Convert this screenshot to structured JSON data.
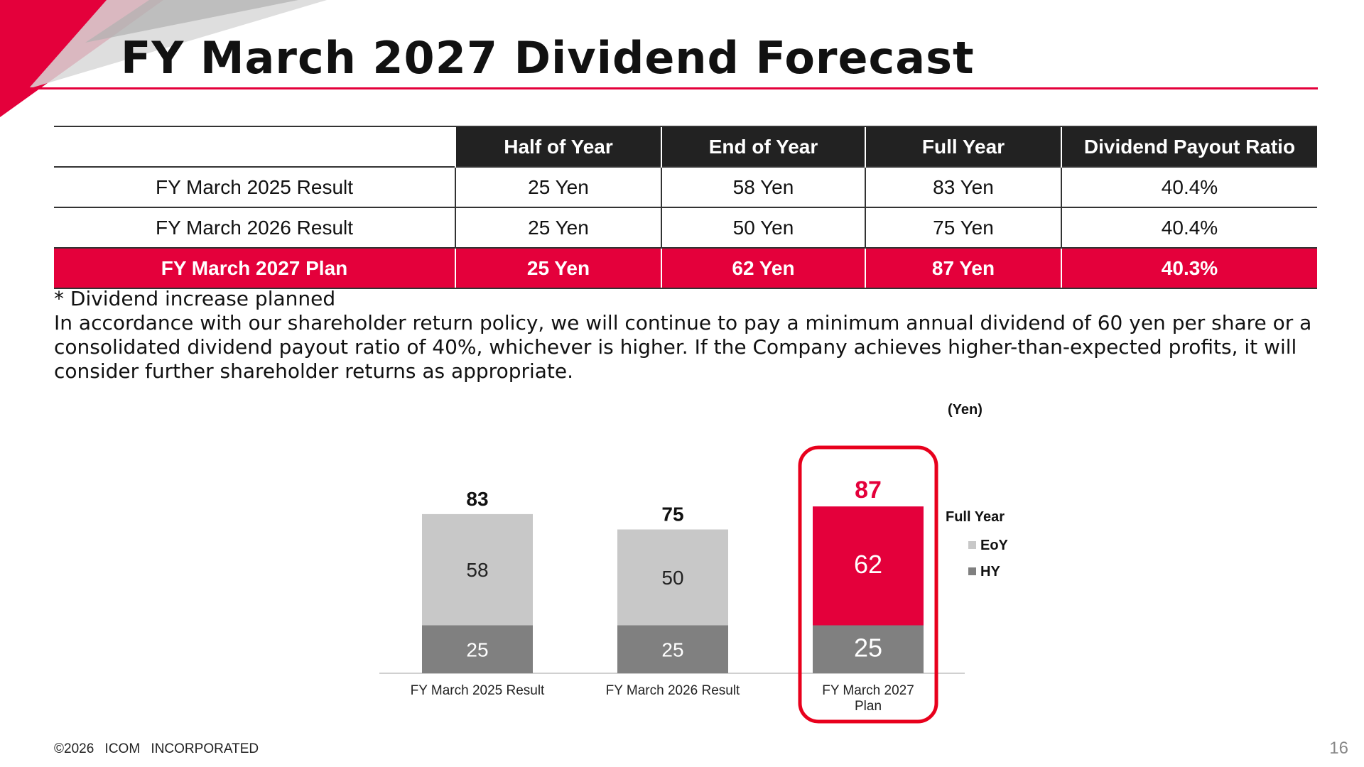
{
  "title": "FY March 2027 Dividend Forecast",
  "colors": {
    "accent": "#e4003b",
    "eoy": "#c8c8c8",
    "hy": "#808080",
    "header": "#222222"
  },
  "table": {
    "headers": [
      "",
      "Half of Year",
      "End of Year",
      "Full Year",
      "Dividend Payout Ratio"
    ],
    "rows": [
      [
        "FY March 2025 Result",
        "25 Yen",
        "58 Yen",
        "83 Yen",
        "40.4%"
      ],
      [
        "FY March 2026 Result",
        "25 Yen",
        "50 Yen",
        "75 Yen",
        "40.4%"
      ],
      [
        "FY March 2027 Plan",
        "25 Yen",
        "62 Yen",
        "87 Yen",
        "40.3%"
      ]
    ]
  },
  "notes": [
    "* Dividend increase planned",
    "In accordance with our shareholder return policy, we will continue to pay a minimum annual dividend of 60 yen per share or a consolidated dividend payout ratio of 40%, whichever is higher. If the Company achieves higher-than-expected profits, it will consider further shareholder returns as appropriate."
  ],
  "chart_data": {
    "type": "bar",
    "stacked": true,
    "unit_label": "(Yen)",
    "categories": [
      "FY March 2025 Result",
      "FY March 2026 Result",
      "FY March 2027\nPlan"
    ],
    "series": [
      {
        "name": "HY",
        "values": [
          25,
          25,
          25
        ],
        "color": "#808080"
      },
      {
        "name": "EoY",
        "values": [
          58,
          50,
          62
        ],
        "color": "#c8c8c8",
        "highlight_color": "#e4003b"
      }
    ],
    "totals": [
      83,
      75,
      87
    ],
    "highlight_index": 2,
    "legend_title": "Full Year",
    "legend_placement": "right",
    "grid": false,
    "ylim": [
      0,
      100
    ]
  },
  "footer": {
    "copyright": "©2026 ICOM INCORPORATED",
    "page": "16"
  }
}
